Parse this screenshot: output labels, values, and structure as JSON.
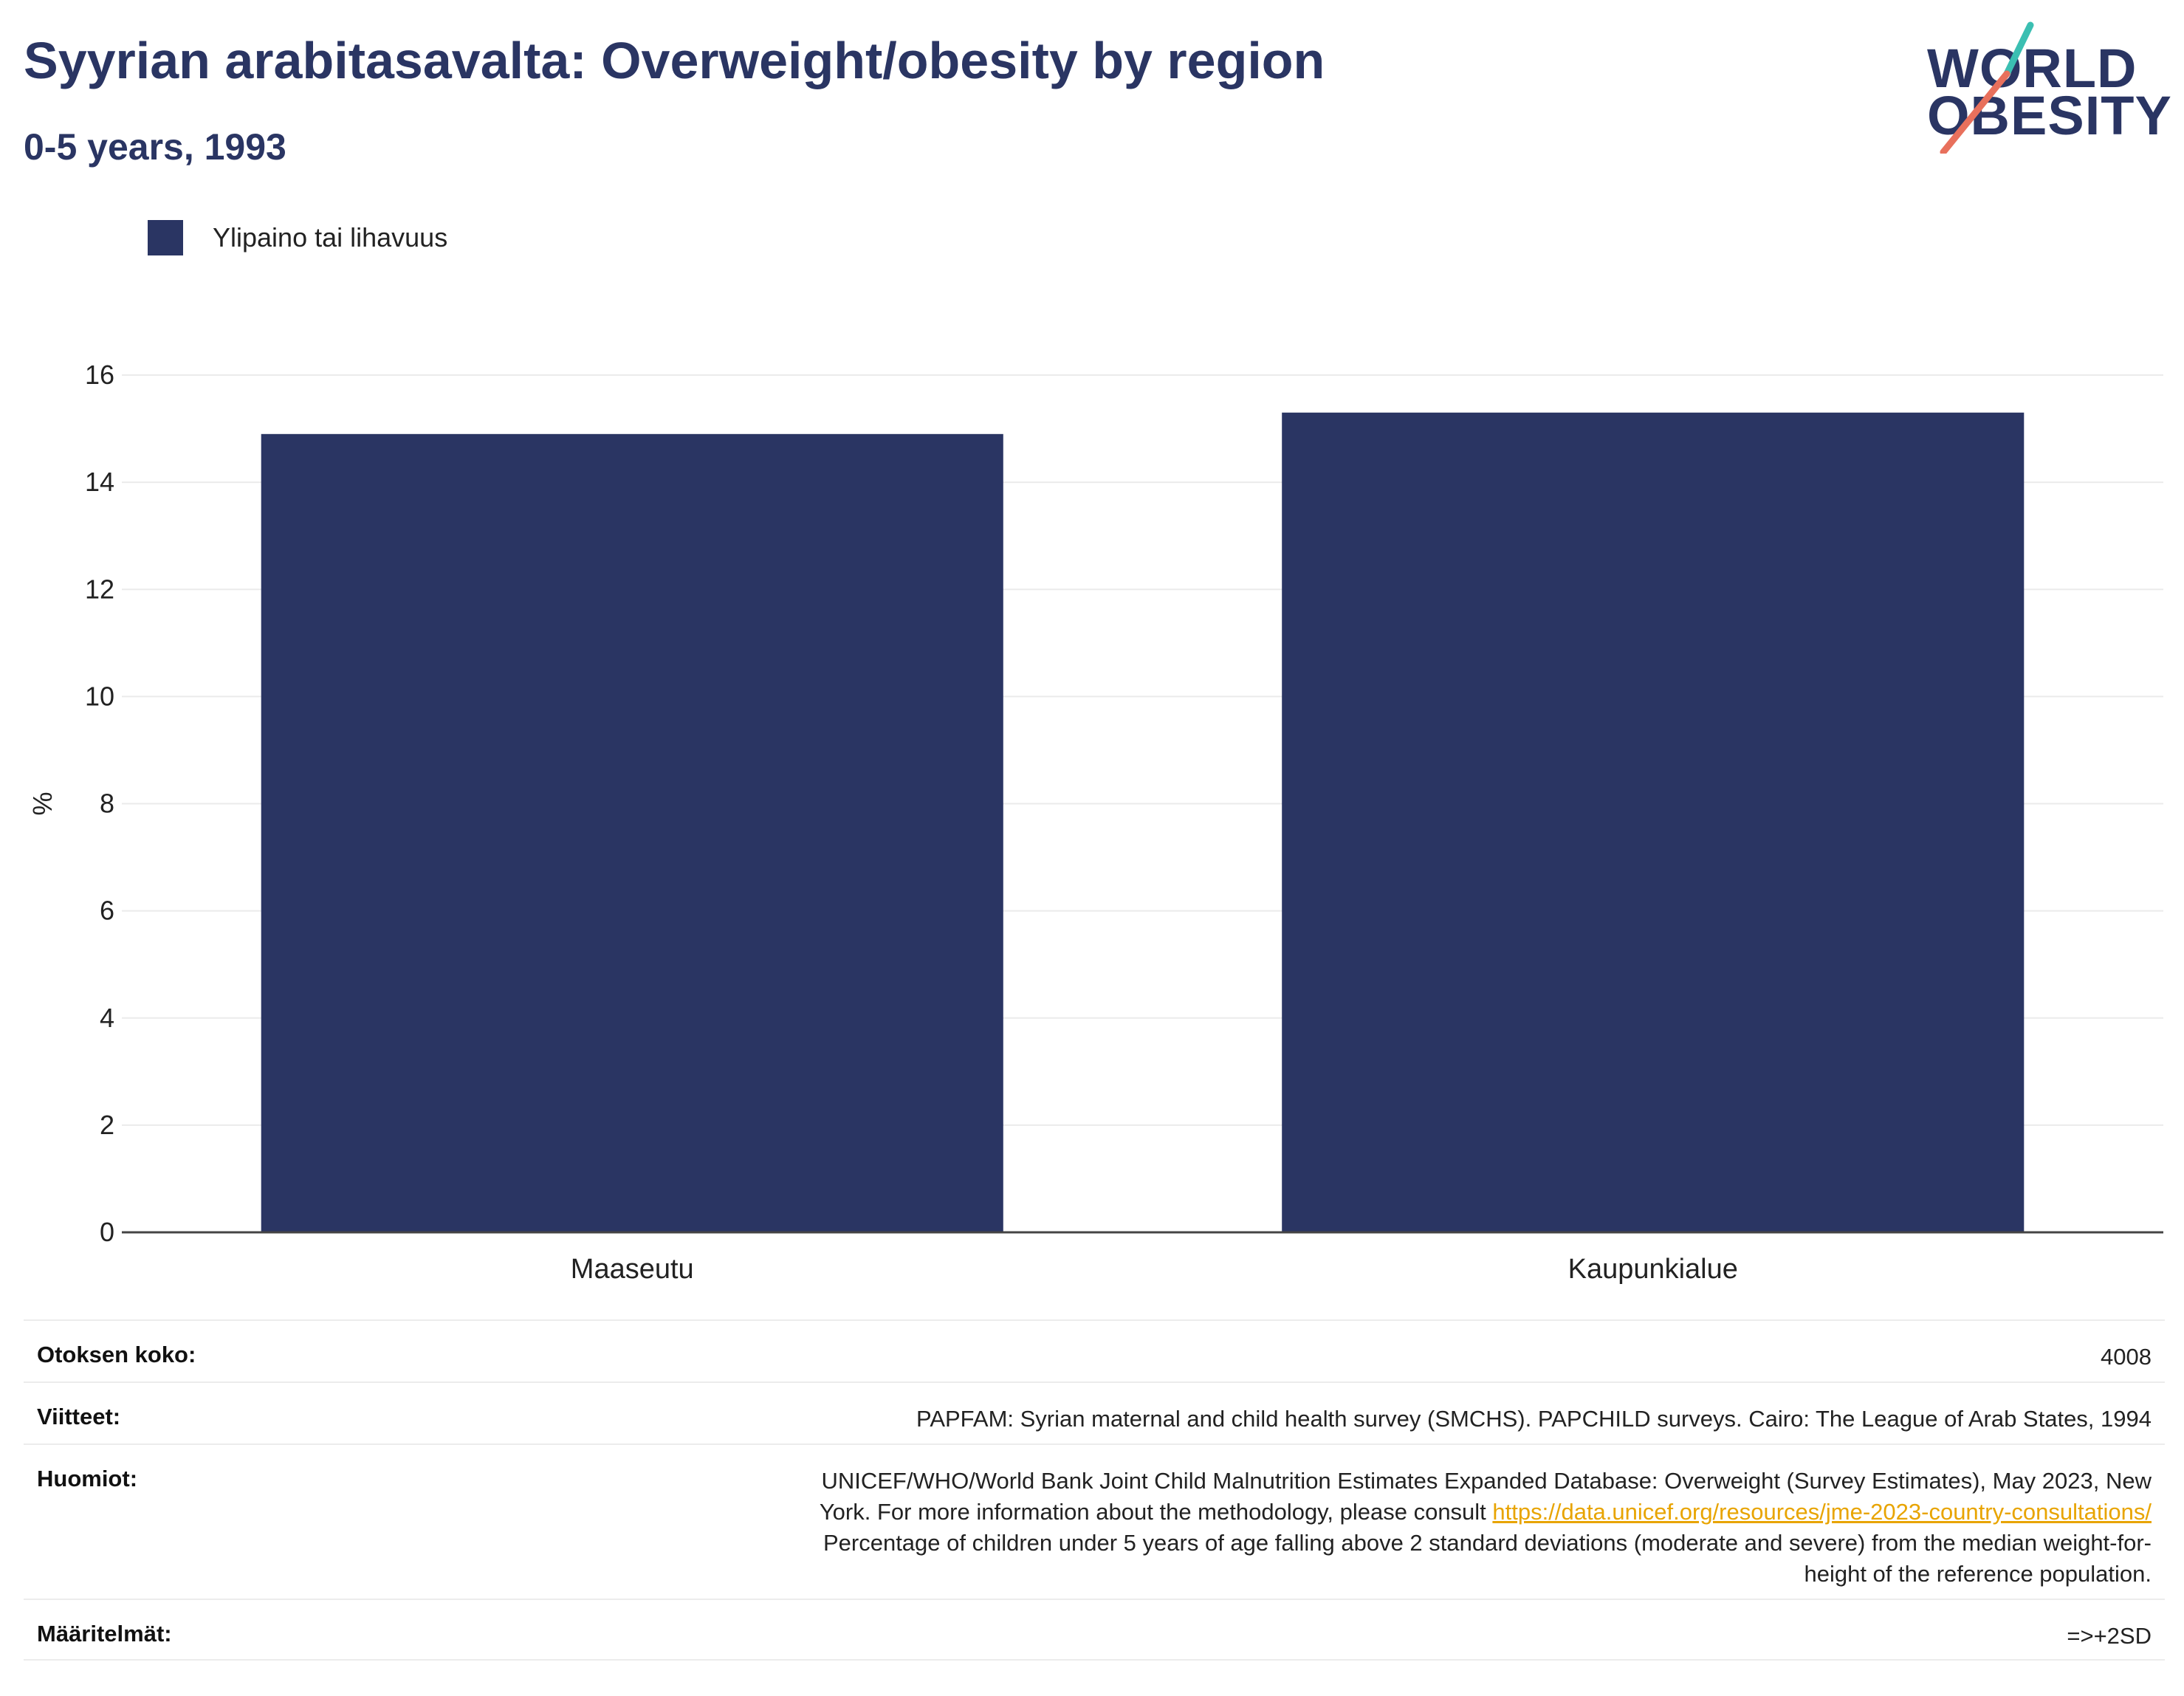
{
  "header": {
    "title": "Syyrian arabitasavalta: Overweight/obesity by region",
    "subtitle": "0-5 years, 1993"
  },
  "logo": {
    "line1": "WORLD",
    "line2": "OBESITY",
    "colors": {
      "text": "#2a3563",
      "slash_top": "#3bbfb2",
      "slash_bottom": "#e8705c"
    }
  },
  "legend": {
    "items": [
      {
        "label": "Ylipaino tai lihavuus",
        "color": "#2a3563"
      }
    ]
  },
  "chart_data": {
    "type": "bar",
    "categories": [
      "Maaseutu",
      "Kaupunkialue"
    ],
    "series": [
      {
        "name": "Ylipaino tai lihavuus",
        "values": [
          14.9,
          15.3
        ],
        "color": "#2a3563"
      }
    ],
    "ylabel": "%",
    "ylim": [
      0,
      16
    ],
    "yticks": [
      0,
      2,
      4,
      6,
      8,
      10,
      12,
      14,
      16
    ],
    "grid": true,
    "legend_position": "top-left"
  },
  "info": {
    "sample_size": {
      "label": "Otoksen koko:",
      "value": "4008"
    },
    "references": {
      "label": "Viitteet:",
      "value": "PAPFAM: Syrian maternal and child health survey (SMCHS). PAPCHILD surveys. Cairo: The League of Arab States, 1994"
    },
    "notes": {
      "label": "Huomiot:",
      "line1": "UNICEF/WHO/World Bank Joint Child Malnutrition Estimates Expanded Database: Overweight (Survey Estimates), May 2023, New",
      "line2_prefix": "York. For more information about the methodology, please consult ",
      "link": "https://data.unicef.org/resources/jme-2023-country-consultations/",
      "line3": "Percentage of children under 5 years of age falling above 2 standard deviations (moderate and severe) from the median weight-for-",
      "line4": "height of the reference population."
    },
    "definitions": {
      "label": "Määritelmät:",
      "value": "=>+2SD"
    }
  }
}
